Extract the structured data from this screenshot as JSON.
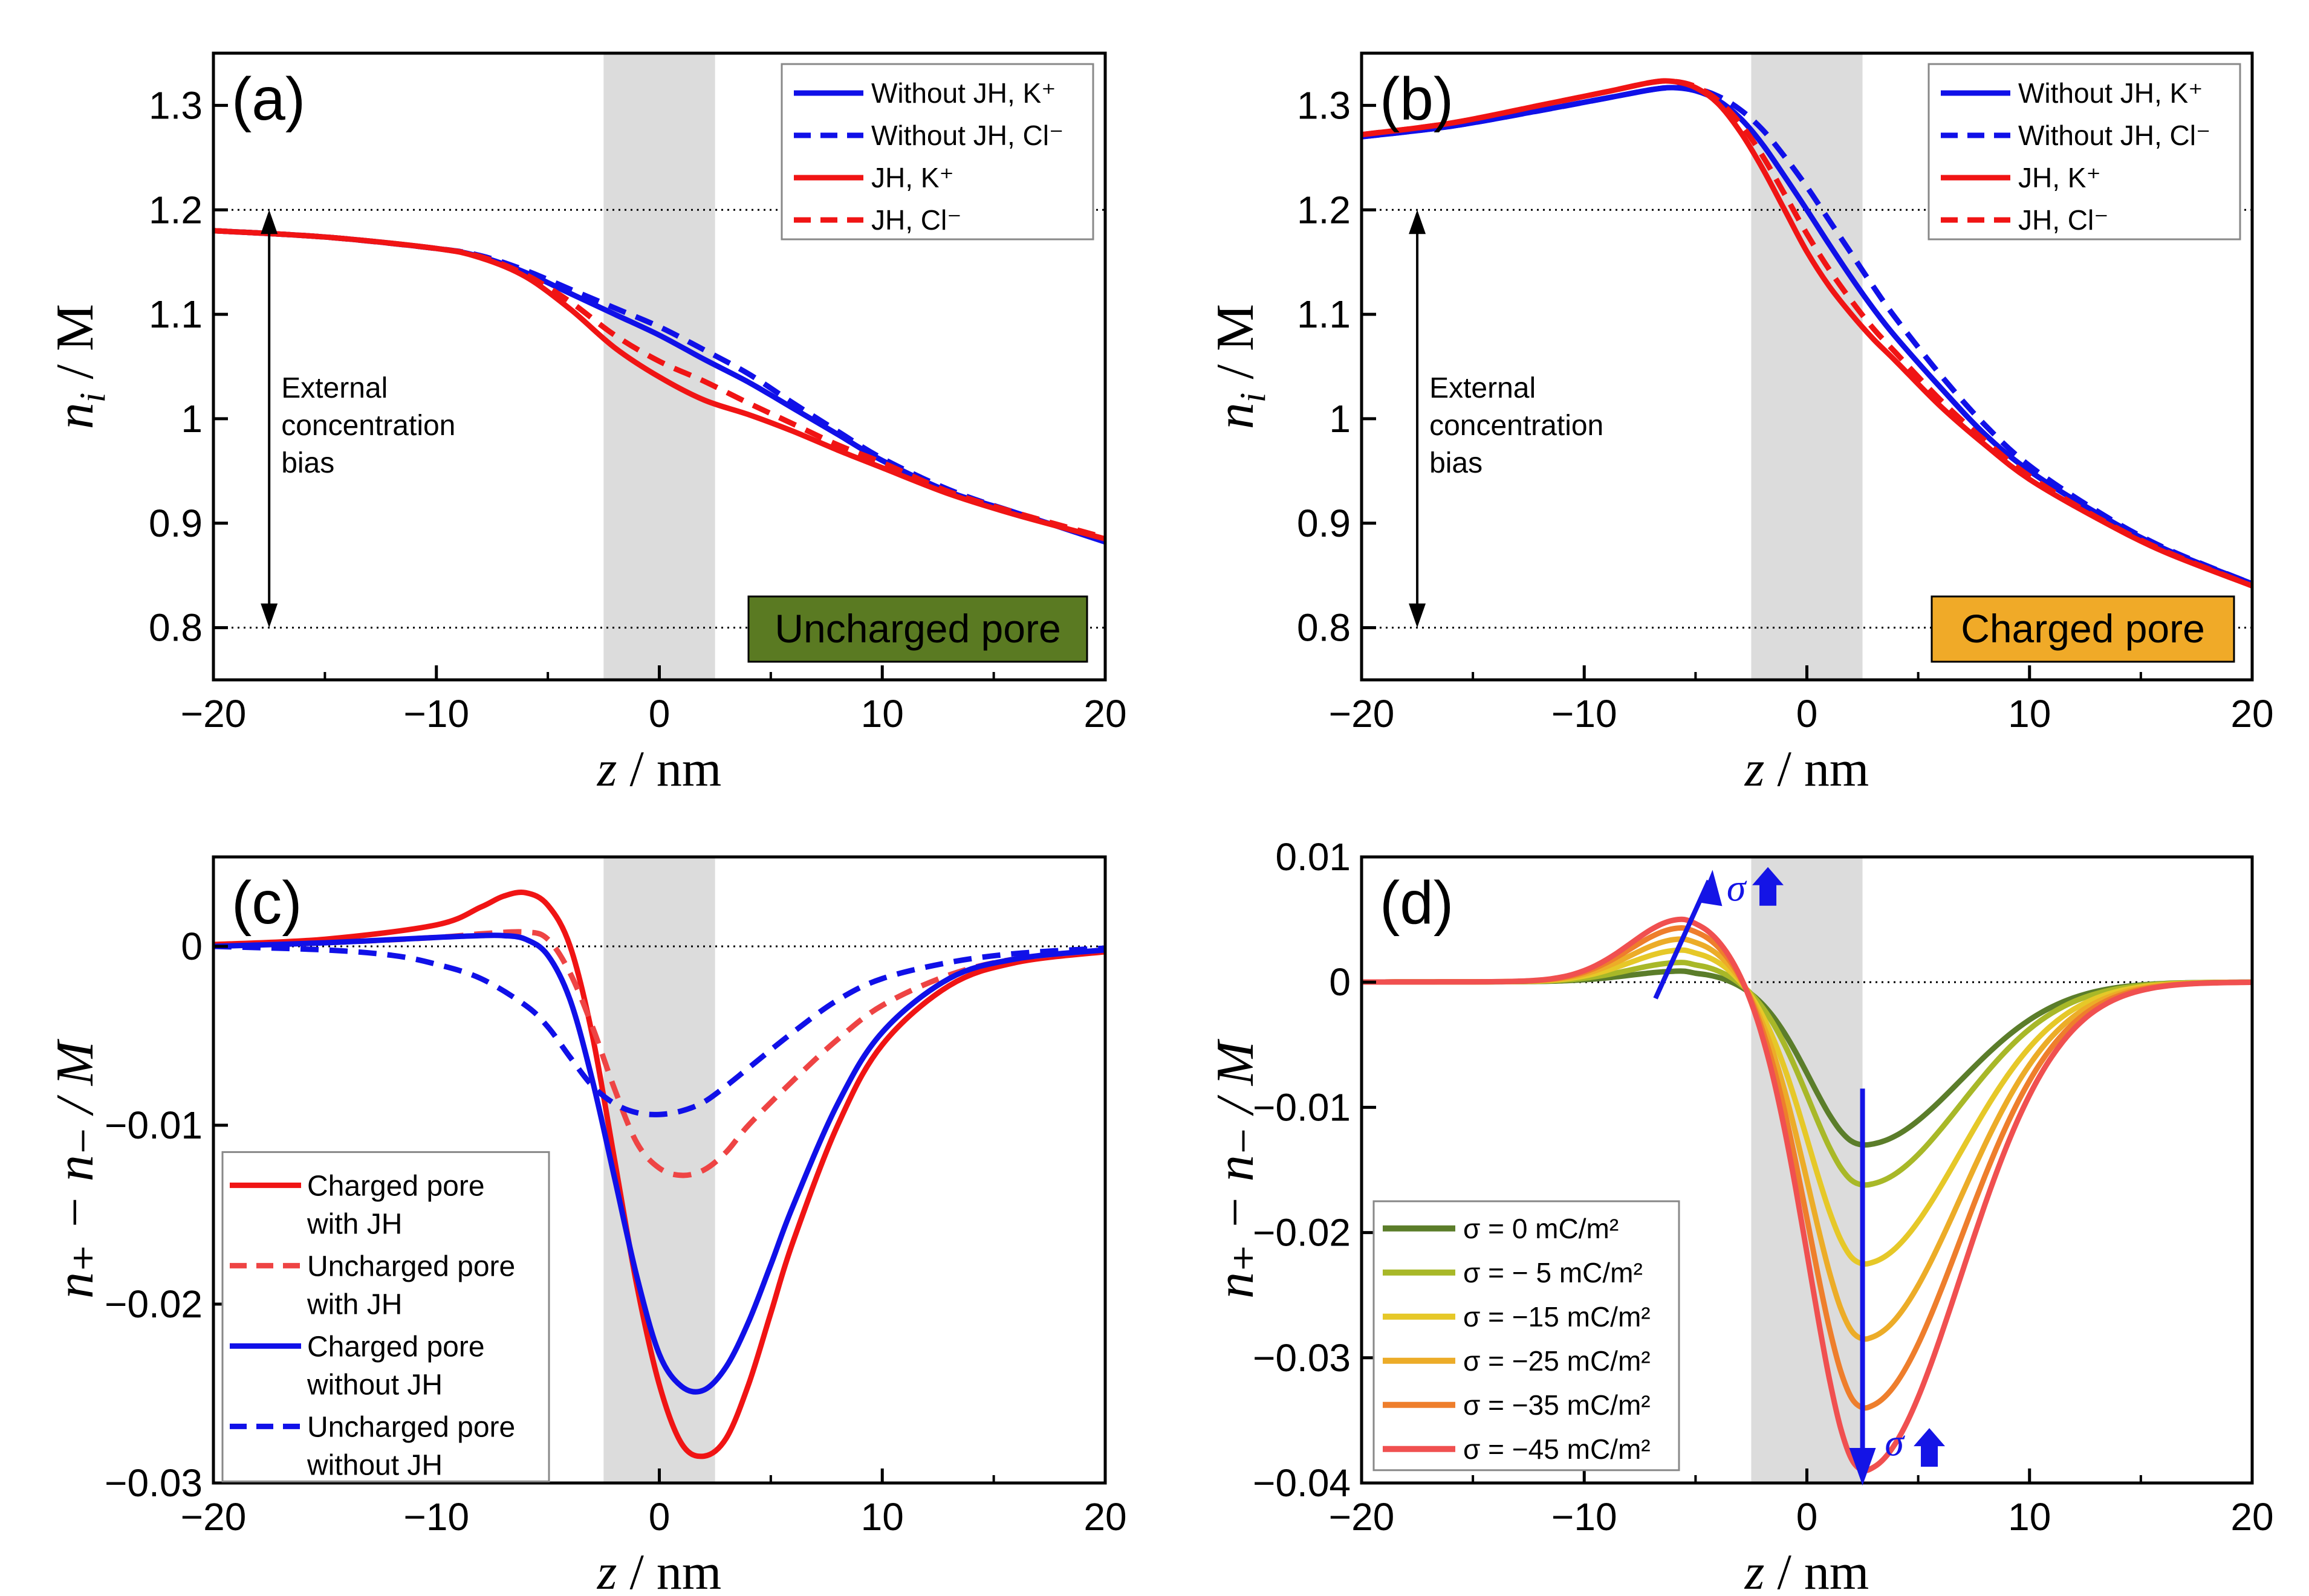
{
  "figure": {
    "colors": {
      "blue": "#1010e8",
      "red": "#f01414",
      "lightred": "#ee4444",
      "band": "#dcdcdc",
      "green_box": "#5a7a22",
      "orange_box": "#f0aa28"
    },
    "sigma_colors": [
      "#5b7d2a",
      "#a8b828",
      "#e6c828",
      "#ecac28",
      "#ee7e2c",
      "#f05050"
    ]
  },
  "chart_data": [
    {
      "id": "a",
      "type": "line",
      "panel_label": "(a)",
      "xlabel_var": "z",
      "xlabel_unit": " / nm",
      "ylabel_main": "n",
      "ylabel_sub": "i",
      "ylabel_unit": " / M",
      "xlim": [
        -20,
        20
      ],
      "ylim": [
        0.75,
        1.35
      ],
      "xticks": [
        -20,
        -10,
        0,
        10,
        20
      ],
      "xtick_labels": [
        "−20",
        "−10",
        "0",
        "10",
        "20"
      ],
      "yticks": [
        0.8,
        0.9,
        1.0,
        1.1,
        1.2,
        1.3
      ],
      "ytick_labels": [
        "0.8",
        "0.9",
        "1",
        "1.1",
        "1.2",
        "1.3"
      ],
      "shaded_band": [
        -2.5,
        2.5
      ],
      "hlines": [
        0.8,
        1.2
      ],
      "bias_arrow": {
        "x": -17.5,
        "from": 0.8,
        "to": 1.2,
        "lines": [
          "External",
          "concentration",
          "bias"
        ]
      },
      "pore_box": {
        "text": "Uncharged pore",
        "color": "#5a7a22"
      },
      "legend": [
        {
          "label": "Without JH, K⁺",
          "color": "#1010e8",
          "dash": false
        },
        {
          "label": "Without JH, Cl⁻",
          "color": "#1010e8",
          "dash": true
        },
        {
          "label": "JH, K⁺",
          "color": "#f01414",
          "dash": false
        },
        {
          "label": "JH, Cl⁻",
          "color": "#f01414",
          "dash": true
        }
      ],
      "series": [
        {
          "name": "Without JH, K⁺",
          "color": "#1010e8",
          "dash": false,
          "x": [
            -20,
            -15,
            -10,
            -8,
            -6,
            -4,
            -2,
            0,
            2,
            4,
            6,
            8,
            10,
            13,
            16,
            20
          ],
          "y": [
            1.18,
            1.174,
            1.163,
            1.155,
            1.14,
            1.12,
            1.1,
            1.08,
            1.057,
            1.035,
            1.01,
            0.985,
            0.96,
            0.93,
            0.91,
            0.882
          ]
        },
        {
          "name": "Without JH, Cl⁻",
          "color": "#1010e8",
          "dash": true,
          "x": [
            -20,
            -15,
            -10,
            -8,
            -6,
            -4,
            -2,
            0,
            2,
            4,
            6,
            8,
            10,
            13,
            16,
            20
          ],
          "y": [
            1.18,
            1.174,
            1.163,
            1.156,
            1.142,
            1.124,
            1.106,
            1.088,
            1.066,
            1.043,
            1.015,
            0.988,
            0.962,
            0.932,
            0.91,
            0.884
          ]
        },
        {
          "name": "JH, K⁺",
          "color": "#f01414",
          "dash": false,
          "x": [
            -20,
            -15,
            -10,
            -8,
            -6,
            -4,
            -2,
            0,
            2,
            4,
            6,
            8,
            10,
            13,
            16,
            20
          ],
          "y": [
            1.18,
            1.174,
            1.163,
            1.154,
            1.136,
            1.105,
            1.068,
            1.04,
            1.018,
            1.004,
            0.988,
            0.97,
            0.953,
            0.928,
            0.908,
            0.885
          ]
        },
        {
          "name": "JH, Cl⁻",
          "color": "#f01414",
          "dash": true,
          "x": [
            -20,
            -15,
            -10,
            -8,
            -6,
            -4,
            -2,
            0,
            2,
            4,
            6,
            8,
            10,
            13,
            16,
            20
          ],
          "y": [
            1.18,
            1.174,
            1.163,
            1.155,
            1.138,
            1.112,
            1.08,
            1.055,
            1.036,
            1.015,
            0.995,
            0.975,
            0.958,
            0.93,
            0.91,
            0.886
          ]
        }
      ]
    },
    {
      "id": "b",
      "type": "line",
      "panel_label": "(b)",
      "xlabel_var": "z",
      "xlabel_unit": " / nm",
      "ylabel_main": "n",
      "ylabel_sub": "i",
      "ylabel_unit": " / M",
      "xlim": [
        -20,
        20
      ],
      "ylim": [
        0.75,
        1.35
      ],
      "xticks": [
        -20,
        -10,
        0,
        10,
        20
      ],
      "xtick_labels": [
        "−20",
        "−10",
        "0",
        "10",
        "20"
      ],
      "yticks": [
        0.8,
        0.9,
        1.0,
        1.1,
        1.2,
        1.3
      ],
      "ytick_labels": [
        "0.8",
        "0.9",
        "1",
        "1.1",
        "1.2",
        "1.3"
      ],
      "shaded_band": [
        -2.5,
        2.5
      ],
      "hlines": [
        0.8,
        1.2
      ],
      "bias_arrow": {
        "x": -17.5,
        "from": 0.8,
        "to": 1.2,
        "lines": [
          "External",
          "concentration",
          "bias"
        ]
      },
      "pore_box": {
        "text": "Charged pore",
        "color": "#f0aa28"
      },
      "legend": [
        {
          "label": "Without JH, K⁺",
          "color": "#1010e8",
          "dash": false
        },
        {
          "label": "Without JH, Cl⁻",
          "color": "#1010e8",
          "dash": true
        },
        {
          "label": "JH, K⁺",
          "color": "#f01414",
          "dash": false
        },
        {
          "label": "JH, Cl⁻",
          "color": "#f01414",
          "dash": true
        }
      ],
      "series": [
        {
          "name": "Without JH, K⁺",
          "color": "#1010e8",
          "dash": false,
          "x": [
            -20,
            -16,
            -12,
            -9,
            -7,
            -6,
            -5,
            -4,
            -3,
            -2,
            -1,
            0,
            1,
            2,
            3,
            4,
            6,
            8,
            10,
            13,
            16,
            20
          ],
          "y": [
            1.27,
            1.28,
            1.295,
            1.307,
            1.315,
            1.317,
            1.314,
            1.305,
            1.288,
            1.263,
            1.232,
            1.2,
            1.167,
            1.135,
            1.105,
            1.078,
            1.03,
            0.985,
            0.95,
            0.91,
            0.876,
            0.842
          ]
        },
        {
          "name": "Without JH, Cl⁻",
          "color": "#1010e8",
          "dash": true,
          "x": [
            -20,
            -16,
            -12,
            -9,
            -7,
            -6,
            -5,
            -4,
            -3,
            -2,
            -1,
            0,
            1,
            2,
            3,
            4,
            6,
            8,
            10,
            13,
            16,
            20
          ],
          "y": [
            1.27,
            1.28,
            1.295,
            1.307,
            1.315,
            1.317,
            1.316,
            1.309,
            1.296,
            1.277,
            1.251,
            1.222,
            1.19,
            1.158,
            1.126,
            1.096,
            1.042,
            0.994,
            0.955,
            0.912,
            0.877,
            0.842
          ]
        },
        {
          "name": "JH, K⁺",
          "color": "#f01414",
          "dash": false,
          "x": [
            -20,
            -16,
            -12,
            -9,
            -7,
            -6,
            -5,
            -4,
            -3,
            -2,
            -1,
            0,
            1,
            2,
            3,
            4,
            6,
            8,
            10,
            13,
            16,
            20
          ],
          "y": [
            1.272,
            1.283,
            1.3,
            1.313,
            1.322,
            1.323,
            1.317,
            1.302,
            1.275,
            1.24,
            1.2,
            1.16,
            1.127,
            1.1,
            1.076,
            1.055,
            1.012,
            0.975,
            0.942,
            0.905,
            0.873,
            0.84
          ]
        },
        {
          "name": "JH, Cl⁻",
          "color": "#f01414",
          "dash": true,
          "x": [
            -20,
            -16,
            -12,
            -9,
            -7,
            -6,
            -5,
            -4,
            -3,
            -2,
            -1,
            0,
            1,
            2,
            3,
            4,
            6,
            8,
            10,
            13,
            16,
            20
          ],
          "y": [
            1.272,
            1.283,
            1.3,
            1.313,
            1.322,
            1.323,
            1.318,
            1.305,
            1.283,
            1.252,
            1.215,
            1.177,
            1.143,
            1.113,
            1.086,
            1.063,
            1.018,
            0.979,
            0.945,
            0.906,
            0.874,
            0.84
          ]
        }
      ]
    },
    {
      "id": "c",
      "type": "line",
      "panel_label": "(c)",
      "xlabel_var": "z",
      "xlabel_unit": " / nm",
      "ylabel_text": "n₊ − n₋ / M",
      "xlim": [
        -20,
        20
      ],
      "ylim": [
        -0.03,
        0.005
      ],
      "xticks": [
        -20,
        -10,
        0,
        10,
        20
      ],
      "xtick_labels": [
        "−20",
        "−10",
        "0",
        "10",
        "20"
      ],
      "yticks": [
        0,
        -0.01,
        -0.02,
        -0.03
      ],
      "ytick_labels": [
        "0",
        "−0.01",
        "−0.02",
        "−0.03"
      ],
      "shaded_band": [
        -2.5,
        2.5
      ],
      "hlines": [
        0
      ],
      "legend": [
        {
          "label": "Charged pore",
          "label2": "with JH",
          "color": "#f01414",
          "dash": false
        },
        {
          "label": "Uncharged pore",
          "label2": "with JH",
          "color": "#ee4444",
          "dash": true
        },
        {
          "label": "Charged pore",
          "label2": "without JH",
          "color": "#1010e8",
          "dash": false
        },
        {
          "label": "Uncharged pore",
          "label2": "without JH",
          "color": "#1010e8",
          "dash": true
        }
      ],
      "series": [
        {
          "name": "Charged pore with JH",
          "color": "#f01414",
          "dash": false,
          "x": [
            -20,
            -15,
            -10,
            -8,
            -7,
            -6,
            -5,
            -4,
            -3,
            -2,
            -1,
            0,
            1,
            2,
            3,
            4,
            5,
            6,
            8,
            10,
            13,
            16,
            20
          ],
          "y": [
            0.0001,
            0.0004,
            0.0012,
            0.0022,
            0.0028,
            0.003,
            0.0023,
            0.0,
            -0.005,
            -0.012,
            -0.019,
            -0.0245,
            -0.0278,
            -0.0285,
            -0.0275,
            -0.0245,
            -0.0205,
            -0.0165,
            -0.01,
            -0.0055,
            -0.0022,
            -0.0009,
            -0.0003
          ]
        },
        {
          "name": "Uncharged pore with JH",
          "color": "#ee4444",
          "dash": true,
          "x": [
            -20,
            -15,
            -10,
            -8,
            -6,
            -5,
            -4,
            -3,
            -2,
            -1,
            0,
            1,
            2,
            3,
            4,
            6,
            8,
            10,
            13,
            16,
            20
          ],
          "y": [
            0,
            0.0002,
            0.0005,
            0.0007,
            0.0008,
            0.0004,
            -0.0015,
            -0.0045,
            -0.008,
            -0.011,
            -0.0124,
            -0.0128,
            -0.0125,
            -0.0115,
            -0.01,
            -0.0075,
            -0.0052,
            -0.0033,
            -0.0016,
            -0.0007,
            -0.0002
          ]
        },
        {
          "name": "Charged pore without JH",
          "color": "#1010e8",
          "dash": false,
          "x": [
            -20,
            -15,
            -10,
            -8,
            -7,
            -6,
            -5,
            -4,
            -3,
            -2,
            -1,
            0,
            1,
            2,
            3,
            4,
            5,
            6,
            8,
            10,
            13,
            16,
            20
          ],
          "y": [
            0,
            0.0002,
            0.0005,
            0.0006,
            0.0006,
            0.0004,
            -0.0005,
            -0.003,
            -0.0075,
            -0.013,
            -0.0185,
            -0.0228,
            -0.0246,
            -0.0248,
            -0.0235,
            -0.021,
            -0.0178,
            -0.0145,
            -0.0088,
            -0.0048,
            -0.0018,
            -0.0007,
            -0.0002
          ]
        },
        {
          "name": "Uncharged pore without JH",
          "color": "#1010e8",
          "dash": true,
          "x": [
            -20,
            -15,
            -12,
            -10,
            -8,
            -6,
            -5,
            -4,
            -3,
            -2,
            -1,
            0,
            1,
            2,
            3,
            4,
            6,
            8,
            10,
            13,
            16,
            20
          ],
          "y": [
            0,
            -0.0002,
            -0.0005,
            -0.001,
            -0.0018,
            -0.0033,
            -0.0045,
            -0.0062,
            -0.0078,
            -0.0088,
            -0.0093,
            -0.0094,
            -0.0092,
            -0.0087,
            -0.0078,
            -0.0068,
            -0.0048,
            -0.003,
            -0.0018,
            -0.0009,
            -0.0004,
            -0.0001
          ]
        }
      ]
    },
    {
      "id": "d",
      "type": "line",
      "panel_label": "(d)",
      "xlabel_var": "z",
      "xlabel_unit": " / nm",
      "ylabel_text": "n₊ − n₋ / M",
      "xlim": [
        -20,
        20
      ],
      "ylim": [
        -0.04,
        0.01
      ],
      "xticks": [
        -20,
        -10,
        0,
        10,
        20
      ],
      "xtick_labels": [
        "−20",
        "−10",
        "0",
        "10",
        "20"
      ],
      "yticks": [
        0.01,
        0,
        -0.01,
        -0.02,
        -0.03,
        -0.04
      ],
      "ytick_labels": [
        "0.01",
        "0",
        "−0.01",
        "−0.02",
        "−0.03",
        "−0.04"
      ],
      "shaded_band": [
        -2.5,
        2.5
      ],
      "hlines": [
        0
      ],
      "sigma_arrow_labels": [
        "σ",
        "σ"
      ],
      "legend": [
        {
          "label": "σ =     0 mC/m²",
          "color": "#5b7d2a"
        },
        {
          "label": "σ = −  5 mC/m²",
          "color": "#a8b828"
        },
        {
          "label": "σ = −15 mC/m²",
          "color": "#e6c828"
        },
        {
          "label": "σ = −25 mC/m²",
          "color": "#ecac28"
        },
        {
          "label": "σ = −35 mC/m²",
          "color": "#ee7e2c"
        },
        {
          "label": "σ = −45 mC/m²",
          "color": "#f05050"
        }
      ],
      "sigma_values": [
        0,
        -5,
        -15,
        -25,
        -35,
        -45
      ],
      "peak_max": [
        0.0008,
        0.0015,
        0.0025,
        0.0034,
        0.0043,
        0.005
      ],
      "trough_min": [
        -0.013,
        -0.0162,
        -0.0225,
        -0.0285,
        -0.034,
        -0.039
      ]
    }
  ]
}
